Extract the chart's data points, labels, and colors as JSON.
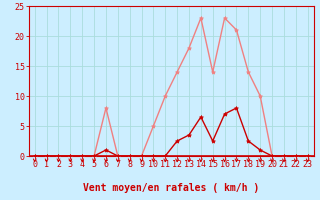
{
  "x": [
    0,
    1,
    2,
    3,
    4,
    5,
    6,
    7,
    8,
    9,
    10,
    11,
    12,
    13,
    14,
    15,
    16,
    17,
    18,
    19,
    20,
    21,
    22,
    23
  ],
  "y_rafales": [
    0,
    0,
    0,
    0,
    0,
    0,
    8,
    0,
    0,
    0,
    5,
    10,
    14,
    18,
    23,
    14,
    23,
    21,
    14,
    10,
    0,
    0,
    0,
    0
  ],
  "y_moyen": [
    0,
    0,
    0,
    0,
    0,
    0,
    1,
    0,
    0,
    0,
    0,
    0,
    2.5,
    3.5,
    6.5,
    2.5,
    7,
    8,
    2.5,
    1,
    0,
    0,
    0,
    0
  ],
  "color_rafales": "#f08080",
  "color_moyen": "#cc0000",
  "bg_color": "#cceeff",
  "grid_color": "#aadddd",
  "xlabel": "Vent moyen/en rafales ( km/h )",
  "ylim": [
    0,
    25
  ],
  "xlim": [
    -0.5,
    23.5
  ],
  "yticks": [
    0,
    5,
    10,
    15,
    20,
    25
  ],
  "xticks": [
    0,
    1,
    2,
    3,
    4,
    5,
    6,
    7,
    8,
    9,
    10,
    11,
    12,
    13,
    14,
    15,
    16,
    17,
    18,
    19,
    20,
    21,
    22,
    23
  ],
  "marker": "*",
  "markersize": 3,
  "linewidth": 1.0,
  "xlabel_fontsize": 7,
  "tick_fontsize": 6,
  "label_color": "#cc0000",
  "spine_color": "#cc0000",
  "hline_color": "#cc0000",
  "arrow_color": "#cc0000"
}
